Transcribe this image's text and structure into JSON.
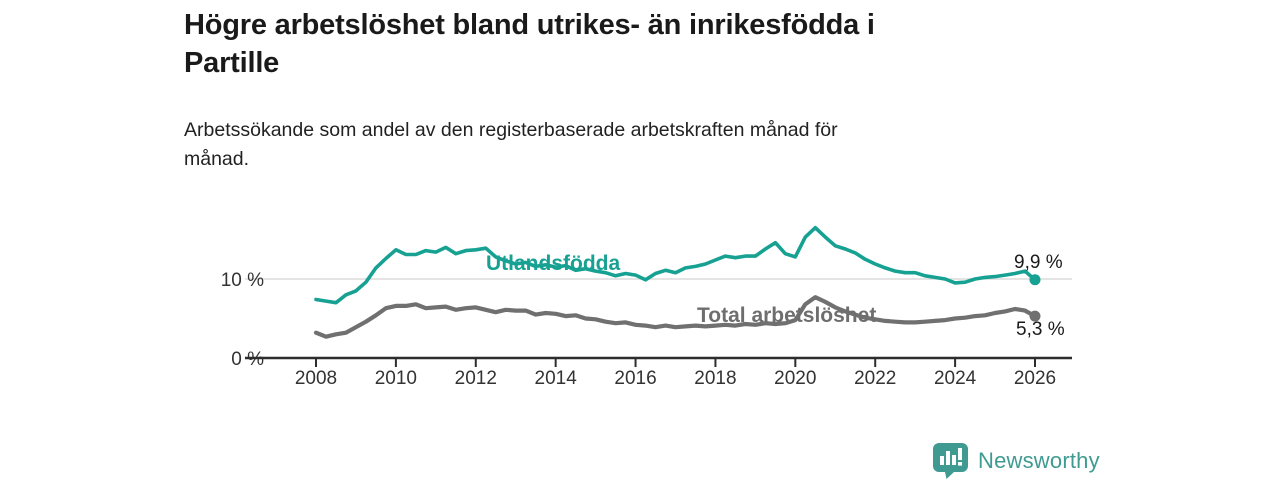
{
  "header": {
    "title_lines": [
      "Högre arbetslöshet bland utrikes- än inrikesfödda i",
      "Partille"
    ],
    "subtitle_lines": [
      "Arbetssökande som andel av den registerbaserade arbetskraften månad för",
      "månad."
    ]
  },
  "colors": {
    "accent_teal": "#17a193",
    "series_gray": "#707070",
    "axis": "#2d2d2d",
    "gridline": "#dcdcdc",
    "text_dark": "#1a1a1a",
    "logo_teal": "#3f9b91"
  },
  "chart_data": {
    "type": "line",
    "x_unit": "year (monthly share of labour force, read quarterly)",
    "x_ticks": [
      2008,
      2010,
      2012,
      2014,
      2016,
      2018,
      2020,
      2022,
      2024,
      2026
    ],
    "y_ticks": [
      {
        "value": 10,
        "label": "10 %",
        "gridline": true
      },
      {
        "value": 0,
        "label": "0 %",
        "gridline": false
      }
    ],
    "xlim": [
      2006.2,
      2026.9
    ],
    "ylim": [
      0,
      17.5
    ],
    "legend_position": "inline labels on lines",
    "grid": "single light horizontal gridline at 10 %",
    "series": [
      {
        "name": "Utlandsfödda",
        "color": "#17a193",
        "x_start": 2008,
        "x_step": 0.25,
        "end_label": "9,9 %",
        "end_value": 9.9,
        "values": [
          7.4,
          7.2,
          7.0,
          8.0,
          8.5,
          9.6,
          11.4,
          12.6,
          13.7,
          13.1,
          13.1,
          13.6,
          13.4,
          14.0,
          13.2,
          13.6,
          13.7,
          13.9,
          12.8,
          12.3,
          11.9,
          12.1,
          11.6,
          11.8,
          11.5,
          11.7,
          11.1,
          11.3,
          11.0,
          10.8,
          10.4,
          10.7,
          10.5,
          9.9,
          10.7,
          11.1,
          10.8,
          11.4,
          11.6,
          11.9,
          12.4,
          12.9,
          12.7,
          12.9,
          12.9,
          13.8,
          14.6,
          13.2,
          12.8,
          15.3,
          16.5,
          15.3,
          14.2,
          13.8,
          13.3,
          12.5,
          11.9,
          11.4,
          11.0,
          10.8,
          10.8,
          10.4,
          10.2,
          10.0,
          9.5,
          9.6,
          10.0,
          10.2,
          10.3,
          10.5,
          10.7,
          11.0,
          9.9
        ]
      },
      {
        "name": "Total arbetslöshet",
        "color": "#707070",
        "x_start": 2008,
        "x_step": 0.25,
        "end_label": "5,3 %",
        "end_value": 5.3,
        "values": [
          3.2,
          2.7,
          3.0,
          3.2,
          3.9,
          4.6,
          5.4,
          6.3,
          6.6,
          6.6,
          6.8,
          6.3,
          6.4,
          6.5,
          6.1,
          6.3,
          6.4,
          6.1,
          5.8,
          6.1,
          6.0,
          6.0,
          5.5,
          5.7,
          5.6,
          5.3,
          5.4,
          5.0,
          4.9,
          4.6,
          4.4,
          4.5,
          4.2,
          4.1,
          3.9,
          4.1,
          3.9,
          4.0,
          4.1,
          4.0,
          4.1,
          4.2,
          4.1,
          4.3,
          4.2,
          4.4,
          4.3,
          4.4,
          4.8,
          6.8,
          7.7,
          7.1,
          6.4,
          5.9,
          5.5,
          5.1,
          4.9,
          4.7,
          4.6,
          4.5,
          4.5,
          4.6,
          4.7,
          4.8,
          5.0,
          5.1,
          5.3,
          5.4,
          5.7,
          5.9,
          6.2,
          6.0,
          5.3
        ]
      }
    ]
  },
  "footer": {
    "brand": "Newsworthy",
    "logo_icon": "bar-chart-speech-bubble"
  }
}
